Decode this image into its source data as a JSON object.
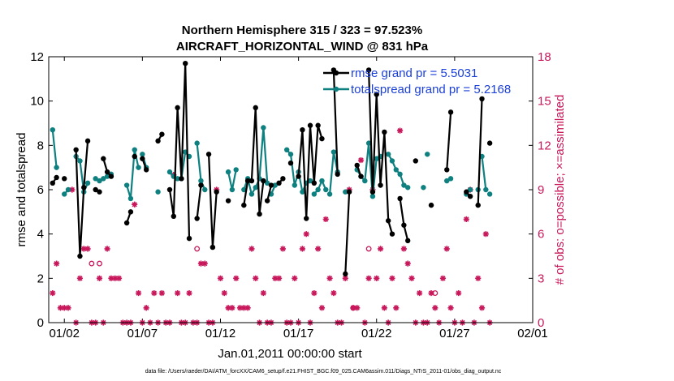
{
  "chart_data": {
    "type": "line",
    "title": "Northern Hemisphere 315 / 323 = 97.523%",
    "subtitle": "AIRCRAFT_HORIZONTAL_WIND @ 831 hPa",
    "xlabel": "Jan.01,2011 00:00:00 start",
    "ylabel": "rmse and totalspread",
    "ylabel_right": "# of obs: o=possible; ×=assimilated",
    "footnote": "data file: /Users/raeder/DAI/ATM_forcXX/CAM6_setup/f.e21.FHIST_BGC.f09_025.CAM6assim.011/Diags_NTrS_2011-01/obs_diag_output.nc",
    "xlim": [
      1,
      32
    ],
    "ylim": [
      0,
      12
    ],
    "ylim_right": [
      0,
      18
    ],
    "x_ticks": [
      2,
      7,
      12,
      17,
      22,
      27,
      32
    ],
    "x_tick_labels": [
      "01/02",
      "01/07",
      "01/12",
      "01/17",
      "01/22",
      "01/27",
      "02/01"
    ],
    "y_ticks": [
      "0",
      "2",
      "4",
      "6",
      "8",
      "10",
      "12"
    ],
    "y_tick_values": [
      0,
      2,
      4,
      6,
      8,
      10,
      12
    ],
    "y_ticks_right": [
      "0",
      "3",
      "6",
      "9",
      "12",
      "15",
      "18"
    ],
    "y_tick_values_right": [
      0,
      3,
      6,
      9,
      12,
      15,
      18
    ],
    "legend_position": "top-right",
    "colors": {
      "rmse": "#000000",
      "spread": "#0f8080",
      "obs": "#c8175a",
      "legend_text": "#1b3fd9"
    },
    "series": [
      {
        "name": "rmse grand pr = 5.5031",
        "color": "#000000",
        "segments": [
          [
            [
              1.25,
              6.3
            ],
            [
              1.5,
              6.55
            ]
          ],
          [
            [
              2.0,
              6.5
            ]
          ],
          [
            [
              2.75,
              7.8
            ],
            [
              3.0,
              3.0
            ],
            [
              3.25,
              6.1
            ],
            [
              3.5,
              8.2
            ]
          ],
          [
            [
              4.0,
              6.0
            ],
            [
              4.25,
              5.9
            ]
          ],
          [
            [
              4.5,
              7.4
            ],
            [
              4.75,
              6.8
            ],
            [
              5.0,
              6.6
            ]
          ],
          [
            [
              6.0,
              4.5
            ],
            [
              6.25,
              5.0
            ]
          ],
          [
            [
              6.5,
              7.5
            ]
          ],
          [
            [
              7.0,
              7.4
            ],
            [
              7.25,
              6.9
            ]
          ],
          [
            [
              8.0,
              8.2
            ],
            [
              8.25,
              8.5
            ]
          ],
          [
            [
              8.75,
              6.0
            ],
            [
              9.0,
              4.8
            ],
            [
              9.25,
              9.7
            ],
            [
              9.5,
              6.5
            ],
            [
              9.75,
              11.7
            ],
            [
              10.0,
              3.8
            ]
          ],
          [
            [
              10.5,
              4.7
            ],
            [
              10.75,
              6.2
            ]
          ],
          [
            [
              11.25,
              7.6
            ],
            [
              11.5,
              3.4
            ],
            [
              11.75,
              5.9
            ]
          ],
          [
            [
              12.5,
              5.5
            ]
          ],
          [
            [
              13.5,
              5.3
            ],
            [
              13.75,
              6.4
            ]
          ],
          [
            [
              14.0,
              6.4
            ],
            [
              14.25,
              9.7
            ],
            [
              14.5,
              4.9
            ],
            [
              14.75,
              6.4
            ]
          ],
          [
            [
              15.0,
              5.5
            ],
            [
              15.25,
              6.2
            ]
          ],
          [
            [
              15.75,
              6.3
            ],
            [
              16.0,
              6.5
            ]
          ],
          [
            [
              16.5,
              7.2
            ]
          ],
          [
            [
              17.0,
              6.6
            ],
            [
              17.25,
              8.7
            ],
            [
              17.5,
              4.7
            ],
            [
              17.75,
              8.9
            ],
            [
              18.0,
              6.3
            ],
            [
              18.25,
              8.9
            ],
            [
              18.5,
              8.3
            ]
          ],
          [
            [
              19.25,
              11.4
            ],
            [
              19.5,
              6.7
            ]
          ],
          [
            [
              20.0,
              2.2
            ],
            [
              20.25,
              5.9
            ]
          ],
          [
            [
              20.75,
              7.1
            ],
            [
              21.0,
              6.6
            ]
          ],
          [
            [
              21.5,
              11.4
            ],
            [
              21.75,
              5.9
            ],
            [
              22.0,
              10.3
            ],
            [
              22.25,
              6.2
            ],
            [
              22.5,
              8.6
            ],
            [
              22.75,
              4.6
            ],
            [
              23.0,
              4.0
            ]
          ],
          [
            [
              23.5,
              5.6
            ],
            [
              23.75,
              4.4
            ],
            [
              24.0,
              3.7
            ]
          ],
          [
            [
              24.5,
              7.3
            ]
          ],
          [
            [
              25.5,
              5.3
            ]
          ],
          [
            [
              26.5,
              6.9
            ],
            [
              26.75,
              9.5
            ]
          ],
          [
            [
              27.75,
              5.9
            ],
            [
              28.0,
              5.7
            ]
          ],
          [
            [
              28.5,
              5.3
            ],
            [
              28.75,
              10.1
            ]
          ],
          [
            [
              29.25,
              8.1
            ]
          ]
        ]
      },
      {
        "name": "totalspread grand pr = 5.2168",
        "color": "#0f8080",
        "segments": [
          [
            [
              1.25,
              8.7
            ],
            [
              1.5,
              7.0
            ]
          ],
          [
            [
              2.0,
              5.8
            ],
            [
              2.25,
              6.0
            ]
          ],
          [
            [
              2.75,
              7.5
            ],
            [
              3.0,
              7.3
            ],
            [
              3.25,
              5.9
            ],
            [
              3.5,
              6.3
            ]
          ],
          [
            [
              4.0,
              6.5
            ],
            [
              4.25,
              6.4
            ]
          ],
          [
            [
              4.5,
              6.5
            ],
            [
              4.75,
              6.6
            ],
            [
              5.0,
              6.7
            ]
          ],
          [
            [
              6.0,
              6.2
            ],
            [
              6.25,
              5.6
            ],
            [
              6.5,
              7.8
            ],
            [
              6.75,
              7.0
            ]
          ],
          [
            [
              7.0,
              7.6
            ],
            [
              7.25,
              7.0
            ]
          ],
          [
            [
              8.0,
              5.9
            ]
          ],
          [
            [
              8.75,
              6.8
            ],
            [
              9.0,
              6.6
            ],
            [
              9.25,
              6.5
            ],
            [
              9.5,
              6.5
            ],
            [
              9.75,
              7.7
            ],
            [
              10.0,
              7.5
            ]
          ],
          [
            [
              10.5,
              8.1
            ],
            [
              10.75,
              6.4
            ],
            [
              11.0,
              6.0
            ]
          ],
          [
            [
              12.5,
              6.8
            ],
            [
              12.75,
              6.0
            ],
            [
              13.0,
              6.9
            ]
          ],
          [
            [
              13.5,
              6.0
            ],
            [
              13.75,
              6.5
            ],
            [
              14.0,
              5.8
            ],
            [
              14.25,
              6.1
            ],
            [
              14.5,
              6.5
            ],
            [
              14.75,
              8.8
            ],
            [
              15.0,
              6.3
            ]
          ],
          [
            [
              15.25,
              5.8
            ],
            [
              15.5,
              6.2
            ]
          ],
          [
            [
              16.25,
              7.8
            ],
            [
              16.5,
              7.6
            ],
            [
              16.75,
              6.2
            ],
            [
              17.0,
              6.8
            ],
            [
              17.25,
              5.9
            ],
            [
              17.5,
              6.3
            ],
            [
              17.75,
              6.4
            ]
          ],
          [
            [
              18.0,
              5.8
            ],
            [
              18.25,
              6.0
            ],
            [
              18.5,
              6.4
            ],
            [
              18.75,
              6.0
            ]
          ],
          [
            [
              19.0,
              5.8
            ],
            [
              19.25,
              7.7
            ],
            [
              19.5,
              6.8
            ]
          ],
          [
            [
              20.0,
              5.9
            ]
          ],
          [
            [
              20.75,
              6.9
            ],
            [
              21.0,
              6.6
            ],
            [
              21.25,
              6.4
            ],
            [
              21.5,
              8.1
            ],
            [
              21.75,
              5.7
            ],
            [
              22.0,
              7.4
            ],
            [
              22.25,
              7.5
            ]
          ],
          [
            [
              22.75,
              7.6
            ],
            [
              23.0,
              7.3
            ],
            [
              23.25,
              6.9
            ],
            [
              23.5,
              6.7
            ],
            [
              23.75,
              6.2
            ],
            [
              24.0,
              6.1
            ]
          ],
          [
            [
              25.0,
              6.1
            ]
          ],
          [
            [
              25.25,
              7.6
            ]
          ],
          [
            [
              26.5,
              6.4
            ],
            [
              26.75,
              6.5
            ]
          ],
          [
            [
              27.75,
              5.8
            ],
            [
              28.0,
              6.0
            ]
          ],
          [
            [
              28.5,
              6.0
            ]
          ],
          [
            [
              28.75,
              7.5
            ],
            [
              29.0,
              6.0
            ]
          ],
          [
            [
              29.25,
              5.8
            ]
          ]
        ]
      }
    ],
    "obs_assimilated": [
      [
        1.25,
        2
      ],
      [
        1.5,
        4
      ],
      [
        1.75,
        1
      ],
      [
        2.0,
        1
      ],
      [
        2.25,
        1
      ],
      [
        2.5,
        9
      ],
      [
        2.75,
        0
      ],
      [
        3.0,
        3
      ],
      [
        3.25,
        5
      ],
      [
        3.5,
        5
      ],
      [
        3.75,
        0
      ],
      [
        4.0,
        0
      ],
      [
        4.25,
        3
      ],
      [
        4.5,
        0
      ],
      [
        4.75,
        5
      ],
      [
        5.0,
        3
      ],
      [
        5.25,
        3
      ],
      [
        5.5,
        3
      ],
      [
        5.75,
        0
      ],
      [
        6.0,
        0
      ],
      [
        6.25,
        0
      ],
      [
        6.5,
        8
      ],
      [
        6.75,
        2
      ],
      [
        7.0,
        0
      ],
      [
        7.25,
        1
      ],
      [
        7.5,
        0
      ],
      [
        7.75,
        2
      ],
      [
        8.0,
        0
      ],
      [
        8.25,
        2
      ],
      [
        8.5,
        0
      ],
      [
        8.75,
        0
      ],
      [
        9.0,
        10
      ],
      [
        9.25,
        2
      ],
      [
        9.5,
        0
      ],
      [
        9.75,
        0
      ],
      [
        10.0,
        2
      ],
      [
        10.25,
        0
      ],
      [
        10.5,
        0
      ],
      [
        10.75,
        4
      ],
      [
        11.0,
        4
      ],
      [
        11.25,
        0
      ],
      [
        11.5,
        0
      ],
      [
        11.75,
        9
      ],
      [
        12.0,
        3
      ],
      [
        12.25,
        2
      ],
      [
        12.5,
        1
      ],
      [
        12.75,
        1
      ],
      [
        13.0,
        3
      ],
      [
        13.25,
        1
      ],
      [
        13.5,
        1
      ],
      [
        13.75,
        1
      ],
      [
        14.0,
        5
      ],
      [
        14.25,
        3
      ],
      [
        14.5,
        0
      ],
      [
        14.75,
        2
      ],
      [
        15.0,
        0
      ],
      [
        15.25,
        0
      ],
      [
        15.5,
        3
      ],
      [
        15.75,
        3
      ],
      [
        16.0,
        5
      ],
      [
        16.25,
        0
      ],
      [
        16.5,
        0
      ],
      [
        16.75,
        3
      ],
      [
        17.0,
        0
      ],
      [
        17.25,
        5
      ],
      [
        17.5,
        6
      ],
      [
        17.75,
        0
      ],
      [
        18.0,
        2
      ],
      [
        18.25,
        5
      ],
      [
        18.5,
        1
      ],
      [
        18.75,
        7
      ],
      [
        19.0,
        3
      ],
      [
        19.25,
        2
      ],
      [
        19.5,
        0
      ],
      [
        19.75,
        0
      ],
      [
        20.0,
        3
      ],
      [
        20.25,
        9
      ],
      [
        20.5,
        1
      ],
      [
        20.75,
        1
      ],
      [
        21.0,
        11
      ],
      [
        21.25,
        0
      ],
      [
        21.5,
        3
      ],
      [
        21.75,
        9
      ],
      [
        22.0,
        3
      ],
      [
        22.25,
        5
      ],
      [
        22.5,
        1
      ],
      [
        22.75,
        0
      ],
      [
        23.0,
        3
      ],
      [
        23.25,
        1
      ],
      [
        23.5,
        13
      ],
      [
        23.75,
        5
      ],
      [
        24.0,
        4
      ],
      [
        24.25,
        3
      ],
      [
        24.5,
        0
      ],
      [
        24.75,
        2
      ],
      [
        25.0,
        0
      ],
      [
        25.25,
        0
      ],
      [
        25.5,
        2
      ],
      [
        25.75,
        1
      ],
      [
        26.0,
        0
      ],
      [
        26.25,
        3
      ],
      [
        26.5,
        5
      ],
      [
        26.75,
        1
      ],
      [
        27.0,
        0
      ],
      [
        27.25,
        2
      ],
      [
        27.5,
        0
      ],
      [
        27.75,
        7
      ],
      [
        28.0,
        9
      ],
      [
        28.25,
        0
      ],
      [
        28.5,
        3
      ],
      [
        28.75,
        1
      ],
      [
        29.0,
        6
      ],
      [
        29.25,
        0
      ]
    ],
    "obs_possible": [
      [
        3.75,
        4
      ],
      [
        4.25,
        4
      ],
      [
        10.5,
        5
      ],
      [
        20.5,
        1
      ],
      [
        21.5,
        5
      ],
      [
        25.75,
        2
      ]
    ],
    "legend_entries": [
      "rmse grand pr = 5.5031",
      "totalspread grand pr = 5.2168"
    ]
  }
}
